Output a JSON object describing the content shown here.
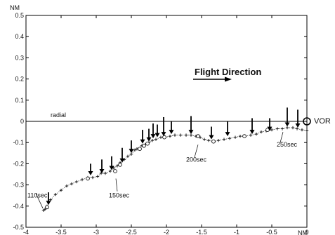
{
  "chart_data": {
    "type": "scatter",
    "xunit": "NM",
    "yunit": "NM",
    "xlim": [
      -4,
      0
    ],
    "ylim": [
      -0.5,
      0.5
    ],
    "xticks": [
      "-4",
      "-3.5",
      "-3",
      "-2.5",
      "-2",
      "-1.5",
      "-1",
      "-0.5",
      "0"
    ],
    "yticks": [
      "0.5",
      "0.4",
      "0.3",
      "0.2",
      "0.1",
      "0",
      "-0.1",
      "-0.2",
      "-0.3",
      "-0.4",
      "-0.5"
    ],
    "xtick_values": [
      -4,
      -3.5,
      -3,
      -2.5,
      -2,
      -1.5,
      -1,
      -0.5,
      0
    ],
    "ytick_values": [
      0.5,
      0.4,
      0.3,
      0.2,
      0.1,
      0,
      -0.1,
      -0.2,
      -0.3,
      -0.4,
      -0.5
    ],
    "radial_label": "radial",
    "flight_direction_label": "Flight Direction",
    "vor_label": "VOR",
    "vor_point": {
      "x": 0,
      "y": 0
    },
    "track_points": [
      {
        "x": -3.75,
        "y": -0.42
      },
      {
        "x": -3.73,
        "y": -0.415
      },
      {
        "x": -3.7,
        "y": -0.4
      },
      {
        "x": -3.65,
        "y": -0.37
      },
      {
        "x": -3.58,
        "y": -0.345
      },
      {
        "x": -3.5,
        "y": -0.325
      },
      {
        "x": -3.42,
        "y": -0.305
      },
      {
        "x": -3.35,
        "y": -0.295
      },
      {
        "x": -3.28,
        "y": -0.285
      },
      {
        "x": -3.2,
        "y": -0.275
      },
      {
        "x": -3.12,
        "y": -0.265
      },
      {
        "x": -3.05,
        "y": -0.265
      },
      {
        "x": -2.98,
        "y": -0.26
      },
      {
        "x": -2.93,
        "y": -0.245
      },
      {
        "x": -2.87,
        "y": -0.245
      },
      {
        "x": -2.8,
        "y": -0.235
      },
      {
        "x": -2.75,
        "y": -0.22
      },
      {
        "x": -2.7,
        "y": -0.21
      },
      {
        "x": -2.66,
        "y": -0.195
      },
      {
        "x": -2.6,
        "y": -0.18
      },
      {
        "x": -2.55,
        "y": -0.165
      },
      {
        "x": -2.5,
        "y": -0.155
      },
      {
        "x": -2.45,
        "y": -0.135
      },
      {
        "x": -2.42,
        "y": -0.13
      },
      {
        "x": -2.35,
        "y": -0.115
      },
      {
        "x": -2.3,
        "y": -0.11
      },
      {
        "x": -2.25,
        "y": -0.1
      },
      {
        "x": -2.2,
        "y": -0.09
      },
      {
        "x": -2.15,
        "y": -0.085
      },
      {
        "x": -2.08,
        "y": -0.075
      },
      {
        "x": -2.02,
        "y": -0.075
      },
      {
        "x": -1.95,
        "y": -0.07
      },
      {
        "x": -1.88,
        "y": -0.065
      },
      {
        "x": -1.8,
        "y": -0.065
      },
      {
        "x": -1.72,
        "y": -0.065
      },
      {
        "x": -1.65,
        "y": -0.065
      },
      {
        "x": -1.58,
        "y": -0.07
      },
      {
        "x": -1.52,
        "y": -0.075
      },
      {
        "x": -1.46,
        "y": -0.085
      },
      {
        "x": -1.4,
        "y": -0.09
      },
      {
        "x": -1.33,
        "y": -0.095
      },
      {
        "x": -1.26,
        "y": -0.09
      },
      {
        "x": -1.18,
        "y": -0.085
      },
      {
        "x": -1.1,
        "y": -0.08
      },
      {
        "x": -1.02,
        "y": -0.075
      },
      {
        "x": -0.95,
        "y": -0.07
      },
      {
        "x": -0.88,
        "y": -0.07
      },
      {
        "x": -0.8,
        "y": -0.065
      },
      {
        "x": -0.72,
        "y": -0.06
      },
      {
        "x": -0.65,
        "y": -0.05
      },
      {
        "x": -0.58,
        "y": -0.045
      },
      {
        "x": -0.5,
        "y": -0.04
      },
      {
        "x": -0.42,
        "y": -0.035
      },
      {
        "x": -0.35,
        "y": -0.035
      },
      {
        "x": -0.28,
        "y": -0.03
      },
      {
        "x": -0.2,
        "y": -0.03
      },
      {
        "x": -0.14,
        "y": -0.035
      },
      {
        "x": -0.07,
        "y": -0.04
      },
      {
        "x": 0.0,
        "y": -0.045
      }
    ],
    "circle_markers": [
      {
        "x": -3.7,
        "y": -0.405
      },
      {
        "x": -3.12,
        "y": -0.27
      },
      {
        "x": -2.73,
        "y": -0.235
      },
      {
        "x": -2.66,
        "y": -0.205
      },
      {
        "x": -2.38,
        "y": -0.13
      },
      {
        "x": -2.32,
        "y": -0.115
      },
      {
        "x": -2.27,
        "y": -0.105
      },
      {
        "x": -2.03,
        "y": -0.075
      },
      {
        "x": -1.55,
        "y": -0.07
      },
      {
        "x": -1.33,
        "y": -0.095
      },
      {
        "x": -0.89,
        "y": -0.07
      },
      {
        "x": -0.56,
        "y": -0.04
      }
    ],
    "arrows": [
      {
        "x": -3.68,
        "y0": -0.335,
        "y1": -0.395
      },
      {
        "x": -3.08,
        "y0": -0.2,
        "y1": -0.255
      },
      {
        "x": -2.92,
        "y0": -0.18,
        "y1": -0.245
      },
      {
        "x": -2.78,
        "y0": -0.165,
        "y1": -0.23
      },
      {
        "x": -2.63,
        "y0": -0.125,
        "y1": -0.195
      },
      {
        "x": -2.5,
        "y0": -0.09,
        "y1": -0.15
      },
      {
        "x": -2.34,
        "y0": -0.04,
        "y1": -0.105
      },
      {
        "x": -2.25,
        "y0": -0.035,
        "y1": -0.095
      },
      {
        "x": -2.19,
        "y0": -0.01,
        "y1": -0.08
      },
      {
        "x": -2.13,
        "y0": -0.015,
        "y1": -0.075
      },
      {
        "x": -2.04,
        "y0": 0.02,
        "y1": -0.07
      },
      {
        "x": -1.93,
        "y0": 0.0,
        "y1": -0.06
      },
      {
        "x": -1.65,
        "y0": 0.025,
        "y1": -0.06
      },
      {
        "x": -1.36,
        "y0": -0.025,
        "y1": -0.085
      },
      {
        "x": -1.13,
        "y0": 0.0,
        "y1": -0.07
      },
      {
        "x": -0.78,
        "y0": 0.015,
        "y1": -0.06
      },
      {
        "x": -0.53,
        "y0": 0.015,
        "y1": -0.045
      },
      {
        "x": -0.28,
        "y0": 0.065,
        "y1": -0.025
      },
      {
        "x": -0.13,
        "y0": 0.055,
        "y1": -0.03
      }
    ],
    "annotations": [
      {
        "text": "110sec",
        "x": -3.98,
        "y": -0.36
      },
      {
        "text": "150sec",
        "x": -2.82,
        "y": -0.36
      },
      {
        "text": "200sec",
        "x": -1.72,
        "y": -0.19
      },
      {
        "text": "250sec",
        "x": -0.43,
        "y": -0.12
      }
    ]
  }
}
